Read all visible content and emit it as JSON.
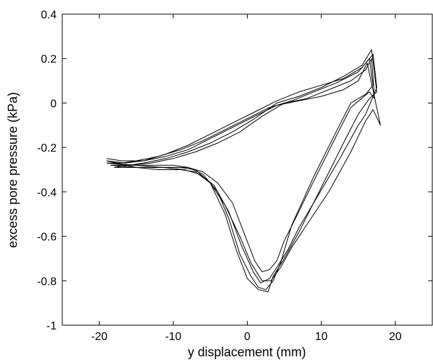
{
  "chart_data": {
    "type": "line",
    "title": "",
    "xlabel": "y displacement (mm)",
    "ylabel": "excess pore pressure (kPa)",
    "xlim": [
      -25,
      25
    ],
    "ylim": [
      -1,
      0.4
    ],
    "xticks": [
      -20,
      -10,
      0,
      10,
      20
    ],
    "yticks": [
      0.4,
      0.2,
      0,
      -0.2,
      -0.4,
      -0.6,
      -0.8,
      -1
    ],
    "xtick_labels": [
      "-20",
      "-10",
      "0",
      "10",
      "20"
    ],
    "ytick_labels": [
      "0.4",
      "0.2",
      "0",
      "-0.2",
      "-0.4",
      "-0.6",
      "-0.8",
      "-1"
    ],
    "grid": false,
    "line_color": "#000000",
    "series": [
      {
        "x": [
          -19,
          -17,
          -15,
          -12,
          -9,
          -6,
          -3,
          0,
          3,
          6,
          9,
          12,
          15,
          16.5,
          17,
          16,
          14,
          12,
          9,
          6,
          4.5,
          3.5,
          2.5,
          1.5,
          0.5,
          -1,
          -2.5,
          -4,
          -6,
          -8,
          -10,
          -13,
          -16,
          -19
        ],
        "y": [
          -0.27,
          -0.27,
          -0.26,
          -0.24,
          -0.21,
          -0.17,
          -0.12,
          -0.07,
          -0.02,
          0.01,
          0.05,
          0.09,
          0.14,
          0.2,
          0.08,
          0.04,
          0.0,
          -0.13,
          -0.33,
          -0.55,
          -0.72,
          -0.8,
          -0.84,
          -0.83,
          -0.78,
          -0.68,
          -0.52,
          -0.4,
          -0.32,
          -0.29,
          -0.28,
          -0.28,
          -0.28,
          -0.27
        ]
      },
      {
        "x": [
          -18.5,
          -16,
          -14,
          -11,
          -8,
          -5,
          -2,
          1,
          4,
          7,
          10,
          13,
          15.5,
          16.8,
          17.5,
          16.5,
          15,
          13,
          10,
          7,
          5,
          3.5,
          2.8,
          1.5,
          0,
          -1.5,
          -3,
          -5,
          -7,
          -9,
          -12,
          -15,
          -18.5
        ],
        "y": [
          -0.28,
          -0.28,
          -0.27,
          -0.25,
          -0.22,
          -0.18,
          -0.13,
          -0.07,
          0.0,
          0.03,
          0.07,
          0.12,
          0.17,
          0.24,
          0.05,
          0.02,
          -0.05,
          -0.18,
          -0.38,
          -0.58,
          -0.7,
          -0.78,
          -0.85,
          -0.84,
          -0.79,
          -0.66,
          -0.5,
          -0.36,
          -0.3,
          -0.29,
          -0.29,
          -0.29,
          -0.28
        ]
      },
      {
        "x": [
          -19,
          -17,
          -14,
          -11,
          -8,
          -5,
          -2,
          1,
          4,
          7,
          10,
          13,
          15,
          16.2,
          18,
          17,
          16,
          14,
          11,
          8,
          6,
          4.5,
          3.2,
          2,
          0.5,
          -1,
          -3,
          -5,
          -7,
          -9,
          -12,
          -15,
          -19
        ],
        "y": [
          -0.25,
          -0.26,
          -0.26,
          -0.24,
          -0.21,
          -0.16,
          -0.11,
          -0.06,
          -0.01,
          0.01,
          0.03,
          0.06,
          0.1,
          0.18,
          -0.1,
          -0.03,
          -0.08,
          -0.22,
          -0.4,
          -0.55,
          -0.65,
          -0.74,
          -0.8,
          -0.8,
          -0.72,
          -0.6,
          -0.46,
          -0.36,
          -0.31,
          -0.3,
          -0.3,
          -0.29,
          -0.26
        ]
      },
      {
        "x": [
          -18,
          -16,
          -13,
          -10,
          -7,
          -4,
          -1,
          2,
          5,
          8,
          11,
          14,
          16,
          16.8,
          17.2,
          16.5,
          14,
          12,
          9,
          6.5,
          5,
          4,
          3,
          2,
          1,
          -0.5,
          -2,
          -4,
          -6,
          -8,
          -11,
          -14,
          -18
        ],
        "y": [
          -0.29,
          -0.28,
          -0.27,
          -0.25,
          -0.22,
          -0.18,
          -0.13,
          -0.06,
          0.0,
          0.02,
          0.06,
          0.1,
          0.15,
          0.2,
          0.02,
          0.05,
          -0.02,
          -0.15,
          -0.35,
          -0.52,
          -0.62,
          -0.71,
          -0.75,
          -0.76,
          -0.71,
          -0.58,
          -0.45,
          -0.36,
          -0.31,
          -0.29,
          -0.29,
          -0.29,
          -0.29
        ]
      },
      {
        "x": [
          -19,
          -16.5,
          -14,
          -11,
          -8,
          -5,
          -2,
          1,
          4,
          7,
          10,
          13,
          15.5,
          17,
          17.5,
          16,
          15,
          12.5,
          9.5,
          7,
          5.5,
          4,
          3,
          1.8,
          0.8,
          -0.8,
          -2.5,
          -4.5,
          -6.5,
          -8.5,
          -11.5,
          -15,
          -19
        ],
        "y": [
          -0.26,
          -0.27,
          -0.26,
          -0.23,
          -0.19,
          -0.14,
          -0.09,
          -0.04,
          0.01,
          0.05,
          0.08,
          0.11,
          0.16,
          0.22,
          0.07,
          -0.05,
          -0.1,
          -0.25,
          -0.42,
          -0.56,
          -0.66,
          -0.74,
          -0.79,
          -0.81,
          -0.76,
          -0.64,
          -0.49,
          -0.37,
          -0.32,
          -0.3,
          -0.29,
          -0.28,
          -0.27
        ]
      }
    ]
  }
}
